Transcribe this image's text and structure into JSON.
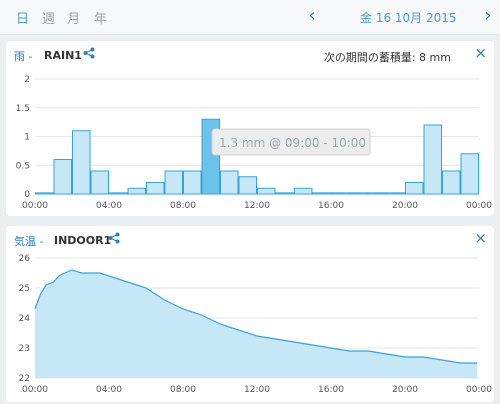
{
  "tabs": [
    {
      "label": "日",
      "active": true
    },
    {
      "label": "週",
      "active": false
    },
    {
      "label": "月",
      "active": false
    },
    {
      "label": "年",
      "active": false
    }
  ],
  "date": "金 16 10月 2015",
  "colors": {
    "accent": "#2f7fc0",
    "bar_fill": "#c6e7f6",
    "bar_stroke": "#39a3d9",
    "bar_highlight": "#6bc2ea",
    "area_fill": "#c6e7f6",
    "area_stroke": "#39a3d9"
  },
  "rain": {
    "metric": "雨",
    "module": "RAIN1",
    "summary": "次の期間の蓄積量:  8 mm",
    "close_label": "×",
    "tooltip": "1.3 mm @ 09:00 - 10:00"
  },
  "temp": {
    "metric": "気温",
    "module": "INDOOR1",
    "close_label": "×"
  },
  "chart_data": [
    {
      "type": "bar",
      "x": [
        0,
        1,
        2,
        3,
        4,
        5,
        6,
        7,
        8,
        9,
        10,
        11,
        12,
        13,
        14,
        15,
        16,
        17,
        18,
        19,
        20,
        21,
        22,
        23
      ],
      "values": [
        0.02,
        0.6,
        1.1,
        0.4,
        0.02,
        0.1,
        0.2,
        0.4,
        0.4,
        1.3,
        0.4,
        0.3,
        0.1,
        0.02,
        0.1,
        0.02,
        0.02,
        0.02,
        0.02,
        0.02,
        0.2,
        1.2,
        0.4,
        0.7
      ],
      "highlight_index": 9,
      "ylim": [
        0,
        2
      ],
      "yticks": [
        "0",
        "0.5",
        "1",
        "1.5",
        "2"
      ],
      "xticks": [
        "00:00",
        "04:00",
        "08:00",
        "12:00",
        "16:00",
        "20:00",
        "00:00"
      ]
    },
    {
      "type": "area",
      "x": [
        0,
        0.3,
        0.6,
        1.0,
        1.3,
        1.6,
        2.0,
        2.5,
        3.0,
        3.5,
        4.0,
        4.5,
        5.0,
        5.5,
        6.0,
        6.5,
        7.0,
        8.0,
        9.0,
        10.0,
        11.0,
        12.0,
        13.0,
        14.0,
        15.0,
        16.0,
        17.0,
        18.0,
        19.0,
        20.0,
        21.0,
        22.0,
        23.0,
        23.9
      ],
      "values": [
        24.3,
        24.8,
        25.1,
        25.2,
        25.4,
        25.5,
        25.6,
        25.5,
        25.5,
        25.5,
        25.4,
        25.3,
        25.2,
        25.1,
        25.0,
        24.8,
        24.6,
        24.3,
        24.1,
        23.8,
        23.6,
        23.4,
        23.3,
        23.2,
        23.1,
        23.0,
        22.9,
        22.9,
        22.8,
        22.7,
        22.7,
        22.6,
        22.5,
        22.5
      ],
      "ylim": [
        22,
        26
      ],
      "yticks": [
        "22",
        "23",
        "24",
        "25",
        "26"
      ],
      "xticks": [
        "00:00",
        "04:00",
        "08:00",
        "12:00",
        "16:00",
        "20:00",
        "00:00"
      ]
    }
  ]
}
